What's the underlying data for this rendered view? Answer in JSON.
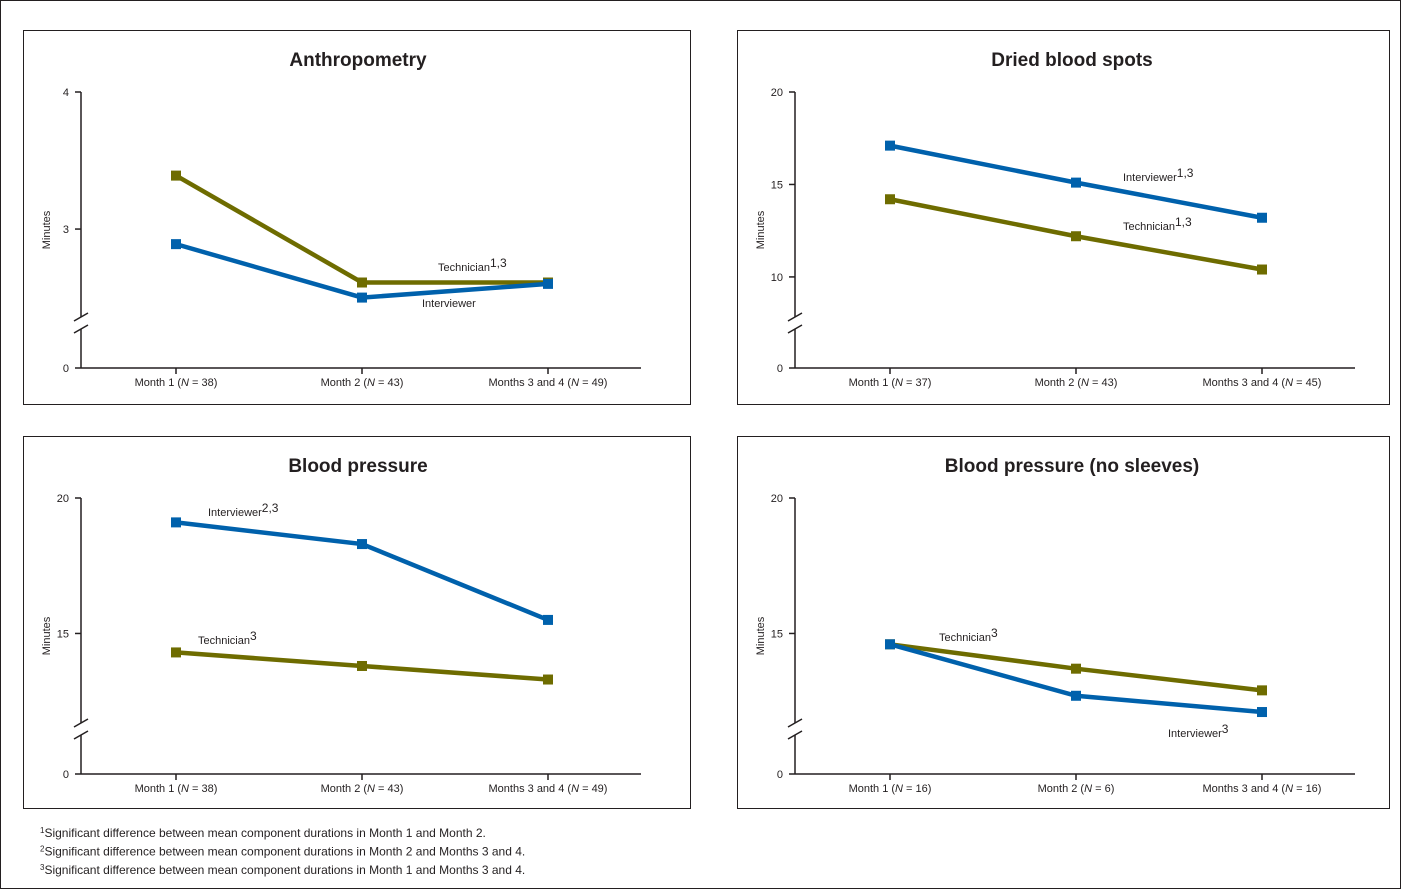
{
  "chart_data": [
    {
      "type": "line",
      "title": "Anthropometry",
      "y_label": "Minutes",
      "categories": [
        "Month 1 (N = 38)",
        "Month 2 (N = 43)",
        "Months 3 and 4 (N = 49)"
      ],
      "ylim": [
        0,
        4
      ],
      "yticks": [
        0,
        3,
        4
      ],
      "y_break": 2.3,
      "series": [
        {
          "name": "Technician",
          "superscript": "1,3",
          "color": "#6e6c00",
          "values": [
            3.39,
            2.61,
            2.61
          ]
        },
        {
          "name": "Interviewer",
          "color": "#0061ac",
          "values": [
            2.89,
            2.5,
            2.6
          ]
        }
      ]
    },
    {
      "type": "line",
      "title": "Dried blood spots",
      "y_label": "Minutes",
      "categories": [
        "Month 1 (N = 37)",
        "Month 2 (N = 43)",
        "Months 3 and 4 (N = 45)"
      ],
      "ylim": [
        0,
        20
      ],
      "yticks": [
        0,
        10,
        15,
        20
      ],
      "y_break": 7.4,
      "series": [
        {
          "name": "Interviewer",
          "superscript": "1,3",
          "color": "#0061ac",
          "values": [
            17.1,
            15.1,
            13.2
          ]
        },
        {
          "name": "Technician",
          "superscript": "1,3",
          "color": "#6e6c00",
          "values": [
            14.2,
            12.2,
            10.4
          ]
        }
      ]
    },
    {
      "type": "line",
      "title": "Blood pressure",
      "y_label": "Minutes",
      "categories": [
        "Month 1 (N = 38)",
        "Month 2 (N = 43)",
        "Months 3 and 4 (N = 49)"
      ],
      "ylim": [
        0,
        20
      ],
      "yticks": [
        0,
        15,
        20
      ],
      "y_break": 11.4,
      "series": [
        {
          "name": "Interviewer",
          "superscript": "2,3",
          "color": "#0061ac",
          "values": [
            19.1,
            18.3,
            15.5
          ]
        },
        {
          "name": "Technician",
          "superscript": "3",
          "color": "#6e6c00",
          "values": [
            14.3,
            13.8,
            13.3
          ]
        }
      ]
    },
    {
      "type": "line",
      "title": "Blood pressure (no sleeves)",
      "y_label": "Minutes",
      "categories": [
        "Month 1 (N = 16)",
        "Month 2 (N = 6)",
        "Months 3 and 4 (N = 16)"
      ],
      "ylim": [
        0,
        20
      ],
      "yticks": [
        0,
        15,
        20
      ],
      "y_break": 11.4,
      "series": [
        {
          "name": "Technician",
          "superscript": "3",
          "color": "#6e6c00",
          "values": [
            14.6,
            13.7,
            12.9
          ]
        },
        {
          "name": "Interviewer",
          "superscript": "3",
          "color": "#0061ac",
          "values": [
            14.6,
            12.7,
            12.1
          ]
        }
      ]
    }
  ],
  "footnotes": [
    {
      "mark": "1",
      "text": "Significant difference between mean component durations in Month 1 and Month 2."
    },
    {
      "mark": "2",
      "text": "Significant difference between mean component durations in Month 2 and Months 3 and 4."
    },
    {
      "mark": "3",
      "text": "Significant difference between mean component durations in Month 1 and Months 3 and 4."
    }
  ]
}
